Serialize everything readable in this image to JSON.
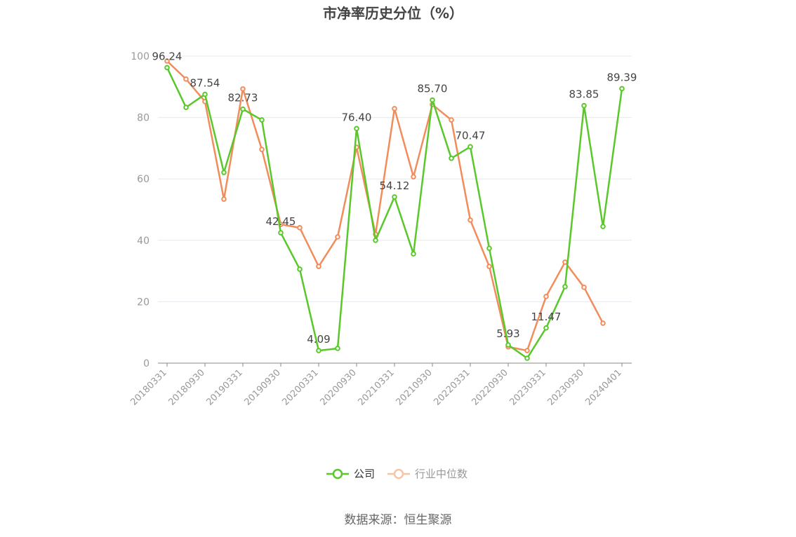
{
  "chart_data": {
    "type": "line",
    "title": "市净率历史分位（%）",
    "categories": [
      "20180331",
      null,
      "20180930",
      null,
      "20190331",
      null,
      "20190930",
      null,
      "20200331",
      null,
      "20200930",
      null,
      "20210331",
      null,
      "20210930",
      null,
      "20220331",
      null,
      "20220930",
      null,
      "20230331",
      null,
      "20230930",
      null,
      "20240401"
    ],
    "series": [
      {
        "name": "公司",
        "color": "#5ac72a",
        "values": [
          96.24,
          83.3,
          87.54,
          62.1,
          82.73,
          79.2,
          42.45,
          30.6,
          4.09,
          4.8,
          76.4,
          40.0,
          54.12,
          35.6,
          85.7,
          66.7,
          70.47,
          37.4,
          5.93,
          1.6,
          11.47,
          24.9,
          83.85,
          44.5,
          89.39
        ],
        "value_labels": [
          "96.24",
          null,
          "87.54",
          null,
          "82.73",
          null,
          "42.45",
          null,
          "4.09",
          null,
          "76.40",
          null,
          "54.12",
          null,
          "85.70",
          null,
          "70.47",
          null,
          "5.93",
          null,
          "11.47",
          null,
          "83.85",
          null,
          "89.39"
        ]
      },
      {
        "name": "行业中位数",
        "color": "#f28c5a",
        "values": [
          98.4,
          92.5,
          85.2,
          53.4,
          89.3,
          69.6,
          45.2,
          44.1,
          31.5,
          41.1,
          70.3,
          42.0,
          82.9,
          60.7,
          84.2,
          79.2,
          46.6,
          31.5,
          5.3,
          4.1,
          21.7,
          32.9,
          24.7,
          13.0,
          null
        ]
      }
    ],
    "ylim": [
      0,
      100
    ],
    "yticks": [
      0,
      20,
      40,
      60,
      80,
      100
    ],
    "grid": true,
    "source": "数据来源：恒生聚源"
  }
}
